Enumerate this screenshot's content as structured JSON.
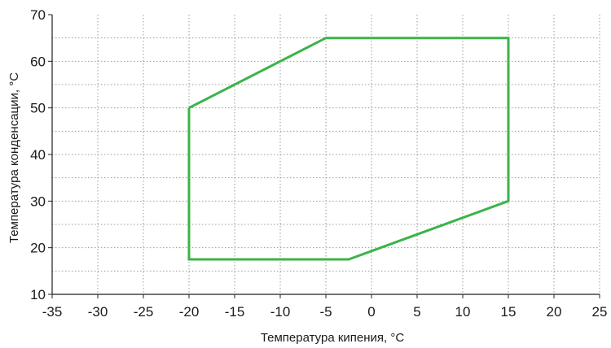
{
  "chart_data": {
    "type": "line",
    "title": "",
    "xlabel": "Температура кипения, °С",
    "ylabel": "Температура конденсации, °С",
    "xlim": [
      -35,
      25
    ],
    "ylim": [
      10,
      70
    ],
    "x_ticks": [
      -35,
      -30,
      -25,
      -20,
      -15,
      -10,
      -5,
      0,
      5,
      10,
      15,
      20,
      25
    ],
    "y_ticks": [
      10,
      20,
      30,
      40,
      50,
      60,
      70
    ],
    "x_tick_labels": [
      "-35",
      "-30",
      "-25",
      "-20",
      "-15",
      "-10",
      "-5",
      "0",
      "5",
      "10",
      "15",
      "20",
      "25"
    ],
    "y_tick_labels": [
      "10",
      "20",
      "30",
      "40",
      "50",
      "60",
      "70"
    ],
    "grid": true,
    "grid_style": "dotted",
    "series": [
      {
        "closed": true,
        "color": "#3cb34a",
        "x": [
          -20,
          -5,
          15,
          15,
          -2.5,
          -20,
          -20
        ],
        "y": [
          50,
          65,
          65,
          30,
          17.5,
          17.5,
          50
        ]
      }
    ]
  }
}
